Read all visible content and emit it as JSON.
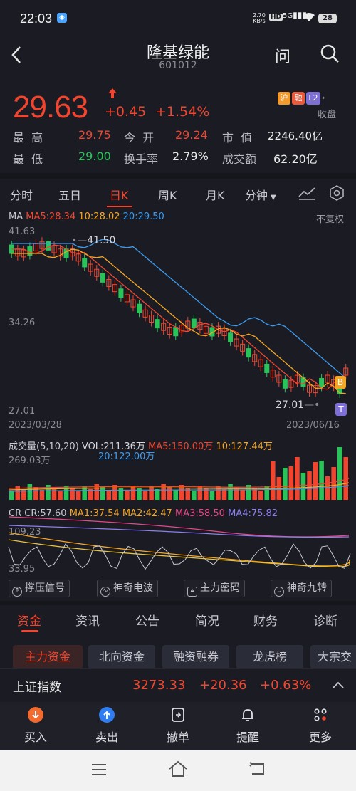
{
  "status": {
    "time": "22:03",
    "net_speed_value": "2.70",
    "net_speed_unit": "KB/s",
    "hd": "HD",
    "signal": "5G",
    "battery": "28"
  },
  "header": {
    "name": "隆基绿能",
    "code": "601012"
  },
  "quote": {
    "price": "29.63",
    "change": "+0.45",
    "pct": "+1.54%",
    "badge_hu": "沪",
    "badge_rong": "融",
    "badge_l2": "L2",
    "close_label": "收盘",
    "high_label": "最  高",
    "high": "29.75",
    "open_label": "今  开",
    "open": "29.24",
    "mcap_label": "市  值",
    "mcap": "2246.40亿",
    "low_label": "最  低",
    "low": "29.00",
    "turnover_label": "换手率",
    "turnover": "2.79%",
    "amount_label": "成交额",
    "amount": "62.20亿"
  },
  "period_tabs": [
    "分时",
    "五日",
    "日K",
    "周K",
    "月K",
    "分钟"
  ],
  "kline": {
    "ma_label": "MA",
    "ma5": "MA5:28.34",
    "ma10": "10:28.02",
    "ma20": "20:29.50",
    "adjust": "不复权",
    "y_top": "41.63",
    "y_mid": "34.26",
    "y_bottom": "27.01",
    "date_start": "2023/03/28",
    "date_end": "2023/06/16",
    "high_mark": "41.50",
    "low_mark": "27.01",
    "marker_b": "B",
    "marker_t": "T"
  },
  "volume": {
    "title": "成交量(5,10,20)",
    "vol": "VOL:211.36万",
    "ma5": "MA5:150.00万",
    "ma10": "10:127.44万",
    "ma20": "20:122.00万",
    "y_top": "269.03万"
  },
  "cr": {
    "label": "CR",
    "cr": "CR:57.60",
    "ma1": "MA1:37.54",
    "ma2": "MA2:42.47",
    "ma3": "MA3:58.50",
    "ma4": "MA4:75.82",
    "y_top": "109.23",
    "y_bottom": "33.95"
  },
  "signal_buttons": [
    "撑压信号",
    "神奇电波",
    "主力密码",
    "神奇九转"
  ],
  "info_tabs": [
    "资金",
    "资讯",
    "公告",
    "简况",
    "财务",
    "诊断"
  ],
  "chips": [
    "主力资金",
    "北向资金",
    "融资融券",
    "龙虎榜",
    "大宗交"
  ],
  "index_bar": {
    "name": "上证指数",
    "value": "3273.33",
    "change": "+20.36",
    "pct": "+0.63%"
  },
  "bottom_nav": [
    "买入",
    "卖出",
    "撤单",
    "提醒",
    "更多"
  ],
  "colors": {
    "up": "#f2452f",
    "down": "#28c45a",
    "ma5": "#f2452f",
    "ma10": "#f5a623",
    "ma20": "#3d9cf0"
  }
}
